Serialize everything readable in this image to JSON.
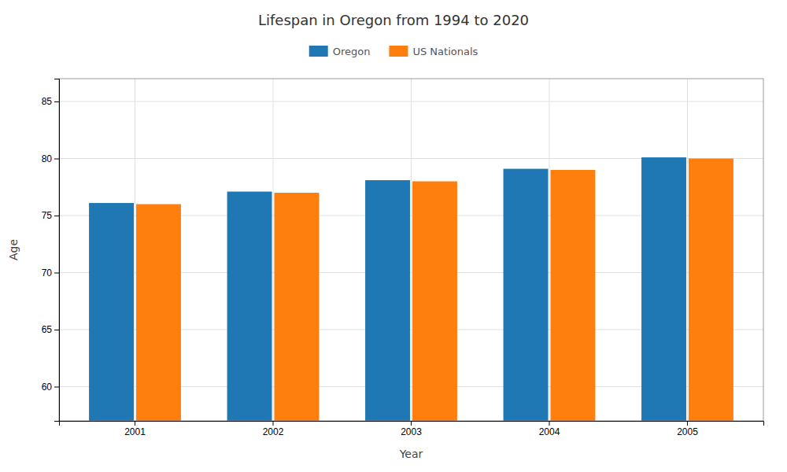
{
  "chart_data": {
    "type": "bar",
    "title": "Lifespan in Oregon from 1994 to 2020",
    "xlabel": "Year",
    "ylabel": "Age",
    "categories": [
      "2001",
      "2002",
      "2003",
      "2004",
      "2005"
    ],
    "series": [
      {
        "name": "Oregon",
        "values": [
          76.1,
          77.1,
          78.1,
          79.1,
          80.1
        ]
      },
      {
        "name": "US Nationals",
        "values": [
          76.0,
          77.0,
          78.0,
          79.0,
          80.0
        ]
      }
    ],
    "ylim": [
      57,
      87
    ],
    "yticks": [
      60,
      65,
      70,
      75,
      80,
      85
    ],
    "grid": true,
    "legend": "top"
  }
}
